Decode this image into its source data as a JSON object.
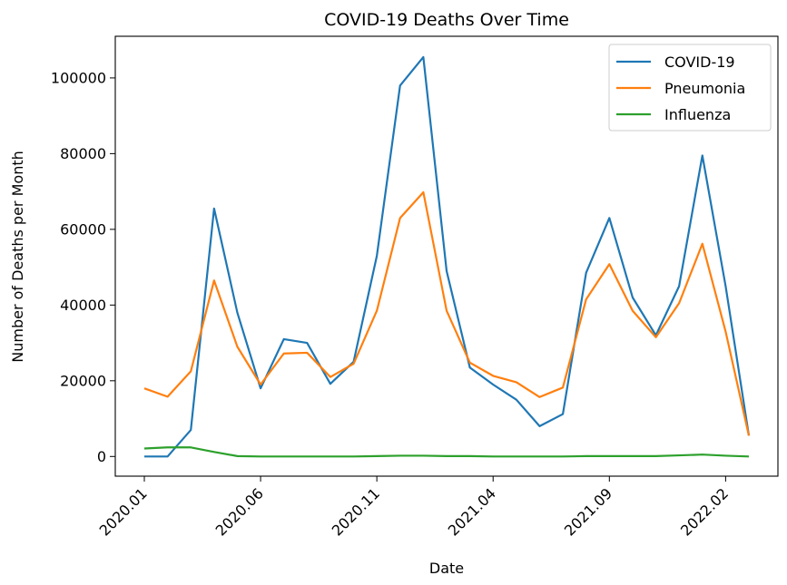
{
  "chart_data": {
    "type": "line",
    "title": "COVID-19 Deaths Over Time",
    "xlabel": "Date",
    "ylabel": "Number of Deaths per Month",
    "x": [
      "2020.01",
      "2020.02",
      "2020.03",
      "2020.04",
      "2020.05",
      "2020.06",
      "2020.07",
      "2020.08",
      "2020.09",
      "2020.10",
      "2020.11",
      "2020.12",
      "2021.01",
      "2021.02",
      "2021.03",
      "2021.04",
      "2021.05",
      "2021.06",
      "2021.07",
      "2021.08",
      "2021.09",
      "2021.10",
      "2021.11",
      "2021.12",
      "2022.01",
      "2022.02",
      "2022.03"
    ],
    "xticks": [
      "2020.01",
      "2020.06",
      "2020.11",
      "2021.04",
      "2021.09",
      "2022.02"
    ],
    "yticks": [
      0,
      20000,
      40000,
      60000,
      80000,
      100000
    ],
    "ylim": [
      -5200,
      111000
    ],
    "grid": false,
    "legend_position": "top-right",
    "series": [
      {
        "name": "COVID-19",
        "color": "#1f77b4",
        "values": [
          0,
          0,
          7000,
          65500,
          38000,
          18000,
          31000,
          30000,
          19200,
          25000,
          53000,
          98000,
          105500,
          49000,
          23500,
          19000,
          15000,
          8000,
          11200,
          48500,
          63000,
          42000,
          32000,
          45000,
          79500,
          45000,
          5500
        ]
      },
      {
        "name": "Pneumonia",
        "color": "#ff7f0e",
        "values": [
          18000,
          15800,
          22500,
          46500,
          29000,
          19000,
          27200,
          27400,
          21000,
          24500,
          38500,
          63000,
          69800,
          38500,
          24800,
          21300,
          19600,
          15700,
          18200,
          41500,
          50800,
          38500,
          31500,
          40500,
          56200,
          33000,
          5500
        ]
      },
      {
        "name": "Influenza",
        "color": "#2ca02c",
        "values": [
          2100,
          2400,
          2400,
          1200,
          100,
          0,
          0,
          0,
          0,
          0,
          100,
          200,
          200,
          100,
          100,
          0,
          0,
          0,
          0,
          100,
          100,
          100,
          100,
          300,
          500,
          200,
          0
        ]
      }
    ]
  }
}
